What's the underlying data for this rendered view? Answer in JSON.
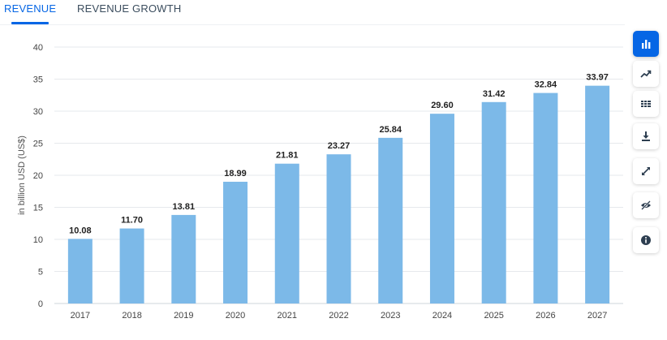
{
  "tabs": [
    {
      "label": "REVENUE",
      "active": true
    },
    {
      "label": "REVENUE GROWTH",
      "active": false
    }
  ],
  "toolbar": {
    "buttons": [
      {
        "icon": "bar-chart-icon",
        "active": true
      },
      {
        "icon": "line-chart-icon",
        "active": false
      },
      {
        "icon": "table-icon",
        "active": false
      },
      {
        "icon": "download-icon",
        "active": false
      },
      {
        "icon": "fullscreen-icon",
        "active": false
      },
      {
        "icon": "hide-icon",
        "active": false
      },
      {
        "icon": "info-icon",
        "active": false
      }
    ]
  },
  "colors": {
    "bar": "#7cb9e8",
    "accent": "#0666e5",
    "grid": "#e6e9ec"
  },
  "chart_data": {
    "type": "bar",
    "categories": [
      "2017",
      "2018",
      "2019",
      "2020",
      "2021",
      "2022",
      "2023",
      "2024",
      "2025",
      "2026",
      "2027"
    ],
    "values": [
      10.08,
      11.7,
      13.81,
      18.99,
      21.81,
      23.27,
      25.84,
      29.6,
      31.42,
      32.84,
      33.97
    ],
    "value_labels": [
      "10.08",
      "11.70",
      "13.81",
      "18.99",
      "21.81",
      "23.27",
      "25.84",
      "29.60",
      "31.42",
      "32.84",
      "33.97"
    ],
    "ylabel": "in billion USD (US$)",
    "xlabel": "",
    "ylim": [
      0,
      40
    ],
    "yticks": [
      0,
      5,
      10,
      15,
      20,
      25,
      30,
      35,
      40
    ],
    "grid": true,
    "legend": "none"
  }
}
